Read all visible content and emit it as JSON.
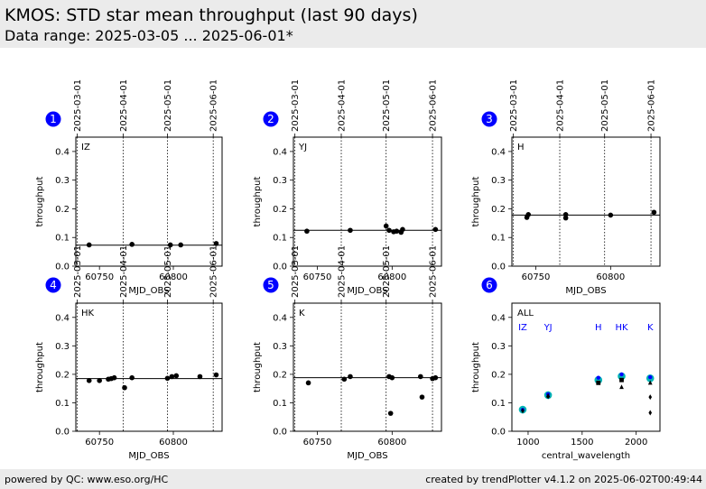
{
  "header": {
    "title": "KMOS: STD star mean throughput (last 90 days)",
    "subtitle": "Data range: 2025-03-05 ... 2025-06-01*"
  },
  "footer": {
    "left": "powered by QC: www.eso.org/HC",
    "right": "created by trendPlotter v4.1.2 on 2025-06-02T00:49:44"
  },
  "colors": {
    "data": "#000000",
    "marker": "#0000ff",
    "highlight": "#00b4b4",
    "band_label": "#0000ff"
  },
  "chart_data": [
    {
      "type": "scatter",
      "panel": "1",
      "label": "IZ",
      "xlabel": "MJD_OBS",
      "ylabel": "throughput",
      "xlim": [
        60734,
        60833
      ],
      "ylim": [
        0,
        0.45
      ],
      "xticks": [
        60750,
        60800
      ],
      "yticks": [
        0.0,
        0.1,
        0.2,
        0.3,
        0.4
      ],
      "top_date_ticks": [
        {
          "label": "2025-03-01",
          "mjd": 60735
        },
        {
          "label": "2025-04-01",
          "mjd": 60766
        },
        {
          "label": "2025-05-01",
          "mjd": 60796
        },
        {
          "label": "2025-06-01",
          "mjd": 60827
        }
      ],
      "mean": 0.073,
      "points": [
        {
          "x": 60743,
          "y": 0.074
        },
        {
          "x": 60772,
          "y": 0.076
        },
        {
          "x": 60798,
          "y": 0.074
        },
        {
          "x": 60805,
          "y": 0.074
        },
        {
          "x": 60829,
          "y": 0.079
        }
      ]
    },
    {
      "type": "scatter",
      "panel": "2",
      "label": "YJ",
      "xlabel": "MJD_OBS",
      "ylabel": "throughput",
      "xlim": [
        60734,
        60833
      ],
      "ylim": [
        0,
        0.45
      ],
      "xticks": [
        60750,
        60800
      ],
      "yticks": [
        0.0,
        0.1,
        0.2,
        0.3,
        0.4
      ],
      "top_date_ticks": [
        {
          "label": "2025-03-01",
          "mjd": 60735
        },
        {
          "label": "2025-04-01",
          "mjd": 60766
        },
        {
          "label": "2025-05-01",
          "mjd": 60796
        },
        {
          "label": "2025-06-01",
          "mjd": 60827
        }
      ],
      "mean": 0.125,
      "points": [
        {
          "x": 60743,
          "y": 0.122
        },
        {
          "x": 60772,
          "y": 0.125
        },
        {
          "x": 60796,
          "y": 0.14
        },
        {
          "x": 60798,
          "y": 0.125
        },
        {
          "x": 60801,
          "y": 0.12
        },
        {
          "x": 60803,
          "y": 0.122
        },
        {
          "x": 60806,
          "y": 0.118
        },
        {
          "x": 60807,
          "y": 0.128
        },
        {
          "x": 60829,
          "y": 0.128
        }
      ]
    },
    {
      "type": "scatter",
      "panel": "3",
      "label": "H",
      "xlabel": "MJD_OBS",
      "ylabel": "throughput",
      "xlim": [
        60734,
        60833
      ],
      "ylim": [
        0,
        0.45
      ],
      "xticks": [
        60750,
        60800
      ],
      "yticks": [
        0.0,
        0.1,
        0.2,
        0.3,
        0.4
      ],
      "top_date_ticks": [
        {
          "label": "2025-03-01",
          "mjd": 60735
        },
        {
          "label": "2025-04-01",
          "mjd": 60766
        },
        {
          "label": "2025-05-01",
          "mjd": 60796
        },
        {
          "label": "2025-06-01",
          "mjd": 60827
        }
      ],
      "mean": 0.178,
      "points": [
        {
          "x": 60744,
          "y": 0.17
        },
        {
          "x": 60745,
          "y": 0.18
        },
        {
          "x": 60770,
          "y": 0.18
        },
        {
          "x": 60770,
          "y": 0.168
        },
        {
          "x": 60800,
          "y": 0.178
        },
        {
          "x": 60829,
          "y": 0.188
        }
      ]
    },
    {
      "type": "scatter",
      "panel": "4",
      "label": "HK",
      "xlabel": "MJD_OBS",
      "ylabel": "throughput",
      "xlim": [
        60734,
        60833
      ],
      "ylim": [
        0,
        0.45
      ],
      "xticks": [
        60750,
        60800
      ],
      "yticks": [
        0.0,
        0.1,
        0.2,
        0.3,
        0.4
      ],
      "top_date_ticks": [
        {
          "label": "2025-03-01",
          "mjd": 60735
        },
        {
          "label": "2025-04-01",
          "mjd": 60766
        },
        {
          "label": "2025-05-01",
          "mjd": 60796
        },
        {
          "label": "2025-06-01",
          "mjd": 60827
        }
      ],
      "mean": 0.185,
      "points": [
        {
          "x": 60743,
          "y": 0.178
        },
        {
          "x": 60750,
          "y": 0.178
        },
        {
          "x": 60756,
          "y": 0.183
        },
        {
          "x": 60758,
          "y": 0.185
        },
        {
          "x": 60760,
          "y": 0.188
        },
        {
          "x": 60767,
          "y": 0.153
        },
        {
          "x": 60772,
          "y": 0.188
        },
        {
          "x": 60796,
          "y": 0.186
        },
        {
          "x": 60799,
          "y": 0.192
        },
        {
          "x": 60802,
          "y": 0.195
        },
        {
          "x": 60818,
          "y": 0.192
        },
        {
          "x": 60829,
          "y": 0.198
        }
      ]
    },
    {
      "type": "scatter",
      "panel": "5",
      "label": "K",
      "xlabel": "MJD_OBS",
      "ylabel": "throughput",
      "xlim": [
        60734,
        60833
      ],
      "ylim": [
        0,
        0.45
      ],
      "xticks": [
        60750,
        60800
      ],
      "yticks": [
        0.0,
        0.1,
        0.2,
        0.3,
        0.4
      ],
      "top_date_ticks": [
        {
          "label": "2025-03-01",
          "mjd": 60735
        },
        {
          "label": "2025-04-01",
          "mjd": 60766
        },
        {
          "label": "2025-05-01",
          "mjd": 60796
        },
        {
          "label": "2025-06-01",
          "mjd": 60827
        }
      ],
      "mean": 0.188,
      "points": [
        {
          "x": 60744,
          "y": 0.17
        },
        {
          "x": 60768,
          "y": 0.183
        },
        {
          "x": 60772,
          "y": 0.192
        },
        {
          "x": 60798,
          "y": 0.192
        },
        {
          "x": 60800,
          "y": 0.188
        },
        {
          "x": 60799,
          "y": 0.063
        },
        {
          "x": 60819,
          "y": 0.192
        },
        {
          "x": 60820,
          "y": 0.12
        },
        {
          "x": 60827,
          "y": 0.185
        },
        {
          "x": 60829,
          "y": 0.188
        }
      ]
    },
    {
      "type": "scatter",
      "panel": "6",
      "label": "ALL",
      "xlabel": "central_wavelength",
      "ylabel": "throughput",
      "xlim": [
        850,
        2220
      ],
      "ylim": [
        0,
        0.45
      ],
      "xticks": [
        1000,
        1500,
        2000
      ],
      "yticks": [
        0.0,
        0.1,
        0.2,
        0.3,
        0.4
      ],
      "band_labels": [
        {
          "text": "IZ",
          "x": 950
        },
        {
          "text": "YJ",
          "x": 1185
        },
        {
          "text": "H",
          "x": 1650
        },
        {
          "text": "HK",
          "x": 1865
        },
        {
          "text": "K",
          "x": 2130
        }
      ],
      "highlight": [
        {
          "x": 950,
          "y": 0.076
        },
        {
          "x": 1185,
          "y": 0.127
        },
        {
          "x": 1650,
          "y": 0.18
        },
        {
          "x": 1865,
          "y": 0.193
        },
        {
          "x": 2130,
          "y": 0.186
        }
      ],
      "markers": [
        {
          "x": 950,
          "y": 0.075,
          "shape": "circle"
        },
        {
          "x": 950,
          "y": 0.072,
          "shape": "diamond"
        },
        {
          "x": 1185,
          "y": 0.13,
          "shape": "circle"
        },
        {
          "x": 1185,
          "y": 0.125,
          "shape": "triangle"
        },
        {
          "x": 1185,
          "y": 0.122,
          "shape": "diamond"
        },
        {
          "x": 1650,
          "y": 0.188,
          "shape": "circle"
        },
        {
          "x": 1650,
          "y": 0.17,
          "shape": "square"
        },
        {
          "x": 1865,
          "y": 0.2,
          "shape": "circle"
        },
        {
          "x": 1865,
          "y": 0.18,
          "shape": "square"
        },
        {
          "x": 1865,
          "y": 0.155,
          "shape": "triangle"
        },
        {
          "x": 2130,
          "y": 0.19,
          "shape": "circle"
        },
        {
          "x": 2130,
          "y": 0.17,
          "shape": "triangle"
        },
        {
          "x": 2130,
          "y": 0.12,
          "shape": "diamond"
        },
        {
          "x": 2130,
          "y": 0.065,
          "shape": "diamond"
        }
      ]
    }
  ]
}
